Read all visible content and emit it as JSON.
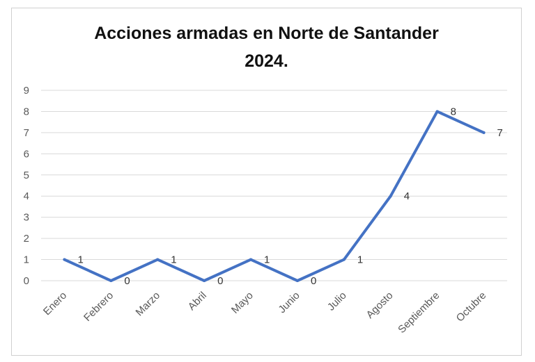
{
  "chart_data": {
    "type": "line",
    "title": "Acciones armadas en Norte de Santander",
    "subtitle": "2024.",
    "categories": [
      "Enero",
      "Febrero",
      "Marzo",
      "Abril",
      "Mayo",
      "Junio",
      "Julio",
      "Agosto",
      "Septiembre",
      "Octubre"
    ],
    "values": [
      1,
      0,
      1,
      0,
      1,
      0,
      1,
      4,
      8,
      7
    ],
    "ylim": [
      0,
      9
    ],
    "yticks": [
      "0",
      "1",
      "2",
      "3",
      "4",
      "5",
      "6",
      "7",
      "8",
      "9"
    ],
    "grid": true,
    "data_labels": true,
    "line_color": "#4472C4"
  }
}
